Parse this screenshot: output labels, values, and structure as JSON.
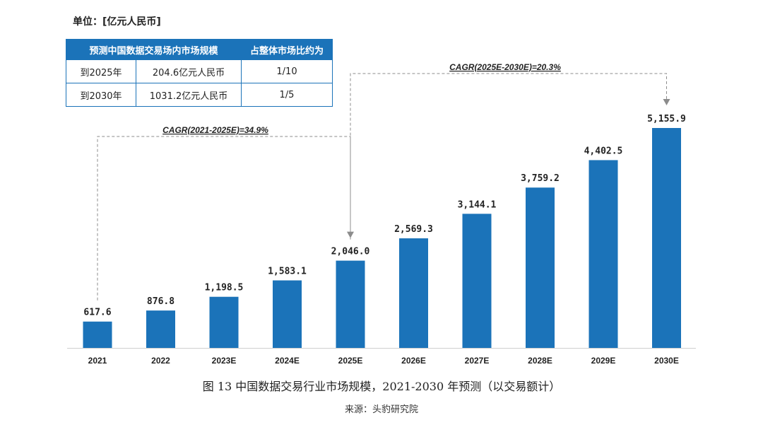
{
  "unit_label": "单位：[亿元人民币]",
  "forecast_table": {
    "headers": [
      "预测中国数据交易场内市场规模",
      "占整体市场比约为"
    ],
    "rows": [
      {
        "year": "到2025年",
        "size": "204.6亿元人民币",
        "share": "1/10"
      },
      {
        "year": "到2030年",
        "size": "1031.2亿元人民币",
        "share": "1/5"
      }
    ]
  },
  "chart_data": {
    "type": "bar",
    "categories": [
      "2021",
      "2022",
      "2023E",
      "2024E",
      "2025E",
      "2026E",
      "2027E",
      "2028E",
      "2029E",
      "2030E"
    ],
    "values": [
      617.6,
      876.8,
      1198.5,
      1583.1,
      2046.0,
      2569.3,
      3144.1,
      3759.2,
      4402.5,
      5155.9
    ],
    "value_labels": [
      "617.6",
      "876.8",
      "1,198.5",
      "1,583.1",
      "2,046.0",
      "2,569.3",
      "3,144.1",
      "3,759.2",
      "4,402.5",
      "5,155.9"
    ],
    "bar_color": "#1b73b9",
    "title": "",
    "xlabel": "",
    "ylabel": "",
    "annotations": [
      {
        "text": "CAGR(2021-2025E)=34.9%",
        "from": "2021",
        "to": "2025E"
      },
      {
        "text": "CAGR(2025E-2030E)=20.3%",
        "from": "2025E",
        "to": "2030E"
      }
    ]
  },
  "caption": "图 13  中国数据交易行业市场规模，2021-2030 年预测（以交易额计）",
  "source": "来源：头豹研究院"
}
